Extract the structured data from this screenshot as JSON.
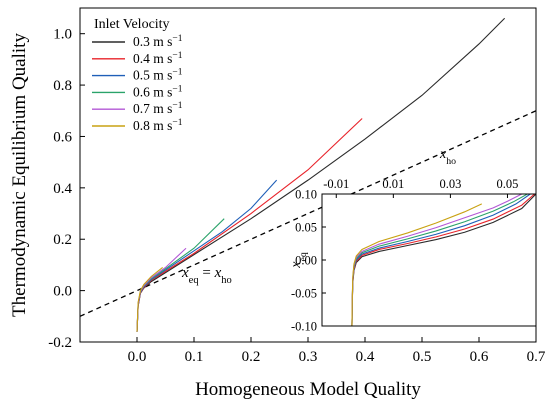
{
  "chart_data": [
    {
      "type": "line",
      "role": "main",
      "xlabel": "Homogeneous Model Quality",
      "ylabel": "Thermodynamic Equilibrium Quality",
      "xlim": [
        -0.1,
        0.7
      ],
      "ylim": [
        -0.2,
        1.1
      ],
      "x_ticks": [
        0.0,
        0.1,
        0.2,
        0.3,
        0.4,
        0.5,
        0.6,
        0.7
      ],
      "x_tick_labels": [
        "0.0",
        "0.1",
        "0.2",
        "0.3",
        "0.4",
        "0.5",
        "0.6",
        "0.7"
      ],
      "y_ticks": [
        -0.2,
        0.0,
        0.2,
        0.4,
        0.6,
        0.8,
        1.0
      ],
      "y_tick_labels": [
        "-0.2",
        "0.0",
        "0.2",
        "0.4",
        "0.6",
        "0.8",
        "1.0"
      ],
      "grid": false,
      "legend": {
        "title": "Inlet Velocity",
        "placement": "top-left",
        "entries": [
          {
            "base": "0.3 m s",
            "sup": "−1"
          },
          {
            "base": "0.4 m s",
            "sup": "−1"
          },
          {
            "base": "0.5 m s",
            "sup": "−1"
          },
          {
            "base": "0.6 m s",
            "sup": "−1"
          },
          {
            "base": "0.7 m s",
            "sup": "−1"
          },
          {
            "base": "0.8 m s",
            "sup": "−1"
          }
        ]
      },
      "series": [
        {
          "name": "0.3 m s−1",
          "color": "#2b2b2b",
          "x": [
            0.0,
            0.002,
            0.006,
            0.012,
            0.025,
            0.05,
            0.1,
            0.2,
            0.3,
            0.4,
            0.5,
            0.6,
            0.645
          ],
          "y": [
            -0.16,
            -0.06,
            -0.01,
            0.01,
            0.035,
            0.07,
            0.14,
            0.28,
            0.43,
            0.59,
            0.76,
            0.96,
            1.06
          ]
        },
        {
          "name": "0.4 m s−1",
          "color": "#e8232a",
          "x": [
            0.0,
            0.002,
            0.006,
            0.012,
            0.025,
            0.05,
            0.1,
            0.2,
            0.3,
            0.395
          ],
          "y": [
            -0.16,
            -0.06,
            -0.01,
            0.012,
            0.04,
            0.075,
            0.145,
            0.3,
            0.47,
            0.67
          ]
        },
        {
          "name": "0.5 m s−1",
          "color": "#1f5fb8",
          "x": [
            0.0,
            0.002,
            0.006,
            0.012,
            0.025,
            0.05,
            0.1,
            0.15,
            0.2,
            0.245
          ],
          "y": [
            -0.16,
            -0.055,
            -0.008,
            0.015,
            0.043,
            0.08,
            0.155,
            0.23,
            0.32,
            0.43
          ]
        },
        {
          "name": "0.6 m s−1",
          "color": "#2aa36a",
          "x": [
            0.0,
            0.002,
            0.006,
            0.012,
            0.025,
            0.05,
            0.1,
            0.153
          ],
          "y": [
            -0.16,
            -0.05,
            -0.005,
            0.018,
            0.046,
            0.085,
            0.165,
            0.28
          ]
        },
        {
          "name": "0.7 m s−1",
          "color": "#b357d6",
          "x": [
            0.0,
            0.002,
            0.006,
            0.012,
            0.025,
            0.05,
            0.086
          ],
          "y": [
            -0.16,
            -0.05,
            -0.003,
            0.02,
            0.05,
            0.09,
            0.165
          ]
        },
        {
          "name": "0.8 m s−1",
          "color": "#c9a212",
          "x": [
            0.0,
            0.002,
            0.006,
            0.012,
            0.025,
            0.045
          ],
          "y": [
            -0.16,
            -0.045,
            0.0,
            0.024,
            0.055,
            0.09
          ]
        }
      ],
      "reference_line": {
        "label_left": "x",
        "label_left_sub": "eq",
        "label_mid": " = ",
        "label_right": "x",
        "label_right_sub": "ho",
        "style": "dashed",
        "color": "#000000",
        "x": [
          -0.1,
          0.7
        ],
        "y": [
          -0.1,
          0.7
        ]
      }
    },
    {
      "type": "line",
      "role": "inset",
      "placement": "bottom-right",
      "xlabel_base": "x",
      "xlabel_sub": "ho",
      "ylabel_base": "x",
      "ylabel_sub": "eq",
      "xlim": [
        -0.015,
        0.06
      ],
      "ylim": [
        -0.1,
        0.1
      ],
      "x_axis_position": "top",
      "x_ticks": [
        -0.01,
        0.01,
        0.03,
        0.05
      ],
      "x_tick_labels": [
        "-0.01",
        "0.01",
        "0.03",
        "0.05"
      ],
      "y_ticks": [
        -0.1,
        -0.05,
        0.0,
        0.05,
        0.1
      ],
      "y_tick_labels": [
        "-0.10",
        "-0.05",
        "0.00",
        "0.05",
        "0.10"
      ],
      "grid": false,
      "series": [
        {
          "name": "0.3 m s−1",
          "color": "#2b2b2b",
          "x": [
            -0.0045,
            -0.0044,
            -0.0042,
            -0.0038,
            -0.003,
            -0.001,
            0.005,
            0.015,
            0.025,
            0.035,
            0.045,
            0.055,
            0.06
          ],
          "y": [
            -0.1,
            -0.065,
            -0.035,
            -0.016,
            -0.004,
            0.005,
            0.013,
            0.022,
            0.031,
            0.042,
            0.057,
            0.078,
            0.1
          ]
        },
        {
          "name": "0.4 m s−1",
          "color": "#e8232a",
          "x": [
            -0.0045,
            -0.0044,
            -0.0042,
            -0.0038,
            -0.003,
            -0.001,
            0.005,
            0.015,
            0.025,
            0.035,
            0.045,
            0.055,
            0.0595
          ],
          "y": [
            -0.1,
            -0.064,
            -0.033,
            -0.014,
            -0.002,
            0.007,
            0.016,
            0.025,
            0.035,
            0.047,
            0.062,
            0.083,
            0.1
          ]
        },
        {
          "name": "0.5 m s−1",
          "color": "#1f5fb8",
          "x": [
            -0.0045,
            -0.0044,
            -0.0042,
            -0.0038,
            -0.003,
            -0.001,
            0.005,
            0.015,
            0.025,
            0.035,
            0.045,
            0.053,
            0.058
          ],
          "y": [
            -0.1,
            -0.063,
            -0.031,
            -0.012,
            0.0,
            0.009,
            0.018,
            0.028,
            0.039,
            0.052,
            0.068,
            0.085,
            0.1
          ]
        },
        {
          "name": "0.6 m s−1",
          "color": "#2aa36a",
          "x": [
            -0.0045,
            -0.0044,
            -0.0042,
            -0.0038,
            -0.003,
            -0.001,
            0.005,
            0.015,
            0.025,
            0.035,
            0.045,
            0.052,
            0.057
          ],
          "y": [
            -0.1,
            -0.062,
            -0.029,
            -0.01,
            0.002,
            0.011,
            0.021,
            0.032,
            0.044,
            0.058,
            0.074,
            0.088,
            0.1
          ]
        },
        {
          "name": "0.7 m s−1",
          "color": "#b357d6",
          "x": [
            -0.0045,
            -0.0044,
            -0.0042,
            -0.0038,
            -0.003,
            -0.001,
            0.005,
            0.015,
            0.025,
            0.035,
            0.045,
            0.05,
            0.055
          ],
          "y": [
            -0.1,
            -0.061,
            -0.027,
            -0.008,
            0.004,
            0.013,
            0.024,
            0.036,
            0.049,
            0.064,
            0.079,
            0.089,
            0.1
          ]
        },
        {
          "name": "0.8 m s−1",
          "color": "#c9a212",
          "x": [
            -0.0045,
            -0.0044,
            -0.0042,
            -0.0038,
            -0.003,
            -0.001,
            0.005,
            0.015,
            0.025,
            0.035,
            0.041
          ],
          "y": [
            -0.1,
            -0.06,
            -0.025,
            -0.006,
            0.006,
            0.016,
            0.028,
            0.041,
            0.056,
            0.073,
            0.085
          ]
        }
      ]
    }
  ]
}
